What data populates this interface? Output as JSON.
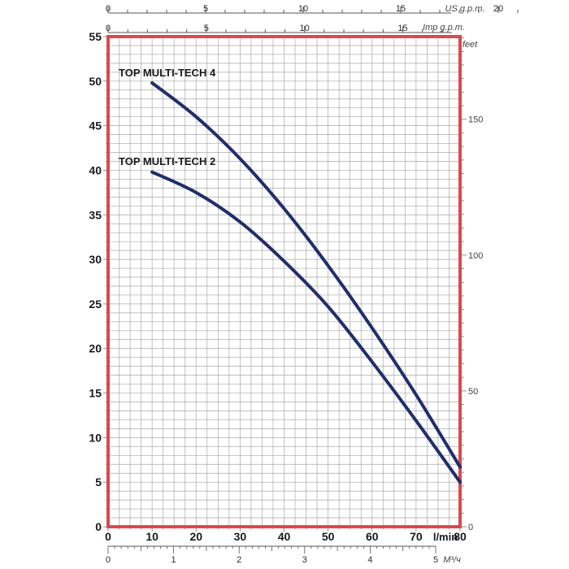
{
  "chart_data": {
    "type": "line",
    "x_unit_label": "l/min",
    "xlim": [
      0,
      80
    ],
    "x_ticks": [
      "0",
      "10",
      "20",
      "30",
      "40",
      "50",
      "60",
      "70",
      "80"
    ],
    "ylim": [
      0,
      55
    ],
    "y_ticks": [
      "0",
      "5",
      "10",
      "15",
      "20",
      "25",
      "30",
      "35",
      "40",
      "45",
      "50",
      "55"
    ],
    "y_right_unit_label": "feet",
    "y_right_ticks": [
      "0",
      "50",
      "100",
      "150"
    ],
    "top_axis_us": {
      "label": "US g.p.m.",
      "ticks": [
        "0",
        "5",
        "10",
        "15",
        "20"
      ]
    },
    "top_axis_imp": {
      "label": "Imp g.p.m.",
      "ticks": [
        "0",
        "5",
        "10",
        "15"
      ]
    },
    "bottom_axis_m3": {
      "label": "M³/ч",
      "ticks": [
        "0",
        "1",
        "2",
        "3",
        "4",
        "5"
      ]
    },
    "grid": true,
    "frame_color": "#e0474c",
    "grid_color": "#a9a9a9",
    "curve_color": "#1f2f6b",
    "series": [
      {
        "name": "TOP MULTI-TECH 4",
        "x": [
          10,
          20,
          30,
          40,
          50,
          60,
          70,
          80
        ],
        "y": [
          49.8,
          46.0,
          41.3,
          35.7,
          29.3,
          22.3,
          14.8,
          6.7
        ]
      },
      {
        "name": "TOP MULTI-TECH 2",
        "x": [
          10,
          20,
          30,
          40,
          50,
          60,
          70,
          80
        ],
        "y": [
          39.8,
          37.5,
          34.2,
          29.8,
          24.7,
          18.5,
          11.9,
          5.0
        ]
      }
    ]
  }
}
